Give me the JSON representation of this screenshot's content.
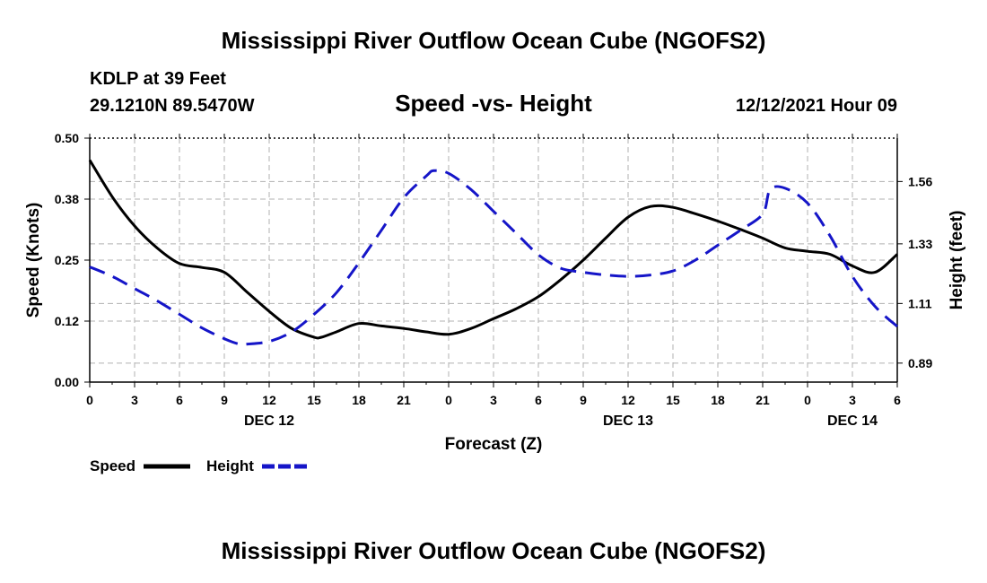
{
  "page": {
    "title": "Mississippi River Outflow Ocean Cube (NGOFS2)",
    "title_repeat": "Mississippi River Outflow Ocean Cube (NGOFS2)",
    "station": "KDLP at 39 Feet",
    "coordinates": "29.1210N  89.5470W",
    "datetime": "12/12/2021 Hour 09"
  },
  "chart_data": {
    "type": "line",
    "title": "Speed -vs- Height",
    "xlabel": "Forecast (Z)",
    "ylabel": "Speed (Knots)",
    "y2label": "Height (feet)",
    "ylim": [
      0,
      0.5
    ],
    "y2lim": [
      0.82,
      1.72
    ],
    "xlim": [
      0,
      54
    ],
    "x_ticks": [
      0,
      3,
      6,
      9,
      12,
      15,
      18,
      21,
      24,
      27,
      30,
      33,
      36,
      39,
      42,
      45,
      48,
      51,
      54
    ],
    "x_tick_labels": [
      "0",
      "3",
      "6",
      "9",
      "12",
      "15",
      "18",
      "21",
      "0",
      "3",
      "6",
      "9",
      "12",
      "15",
      "18",
      "21",
      "0",
      "3",
      "6"
    ],
    "y_ticks": [
      0.0,
      0.125,
      0.25,
      0.375,
      0.5
    ],
    "y_tick_labels": [
      "0.00",
      "0.12",
      "0.25",
      "0.38",
      "0.50"
    ],
    "y2_ticks": [
      0.89,
      1.11,
      1.33,
      1.56
    ],
    "y2_tick_labels": [
      "0.89",
      "1.11",
      "1.33",
      "1.56"
    ],
    "date_labels": [
      {
        "x": 12,
        "label": "DEC 12"
      },
      {
        "x": 36,
        "label": "DEC 13"
      },
      {
        "x": 51,
        "label": "DEC 14"
      }
    ],
    "grid": true,
    "series": [
      {
        "name": "Speed",
        "axis": "left",
        "color": "#000000",
        "style": "solid",
        "x": [
          0,
          1.5,
          3,
          4.5,
          6,
          7.5,
          9,
          10.5,
          12,
          13.5,
          15,
          15.5,
          16.5,
          18,
          19.5,
          21,
          22.5,
          24,
          25.5,
          27,
          28.5,
          30,
          31.5,
          33,
          34.5,
          36,
          37.5,
          39,
          40.5,
          42,
          43.5,
          45,
          46.5,
          48,
          49.5,
          51,
          52.5,
          54
        ],
        "values": [
          0.455,
          0.38,
          0.32,
          0.275,
          0.243,
          0.235,
          0.225,
          0.185,
          0.145,
          0.11,
          0.092,
          0.092,
          0.103,
          0.12,
          0.115,
          0.11,
          0.103,
          0.098,
          0.11,
          0.13,
          0.15,
          0.175,
          0.21,
          0.25,
          0.295,
          0.338,
          0.36,
          0.358,
          0.345,
          0.33,
          0.313,
          0.295,
          0.275,
          0.268,
          0.262,
          0.238,
          0.225,
          0.262
        ]
      },
      {
        "name": "Height",
        "axis": "right",
        "color": "#1515c8",
        "style": "dashed",
        "x": [
          0,
          1.5,
          3,
          4.5,
          6,
          7.5,
          9,
          10,
          10.5,
          12,
          13.5,
          15,
          16.5,
          18,
          19.5,
          21,
          22.5,
          23,
          24,
          25.5,
          27,
          28.5,
          30,
          31.5,
          33,
          34.5,
          36,
          37.5,
          39,
          40.5,
          42,
          43.5,
          45,
          45.5,
          46.5,
          48,
          49.5,
          51,
          52.5,
          54
        ],
        "values": [
          1.245,
          1.21,
          1.165,
          1.12,
          1.07,
          1.02,
          0.98,
          0.96,
          0.96,
          0.97,
          1.005,
          1.07,
          1.15,
          1.26,
          1.38,
          1.5,
          1.58,
          1.6,
          1.59,
          1.53,
          1.45,
          1.37,
          1.29,
          1.24,
          1.225,
          1.215,
          1.21,
          1.215,
          1.23,
          1.27,
          1.325,
          1.38,
          1.44,
          1.53,
          1.535,
          1.48,
          1.36,
          1.21,
          1.1,
          1.025
        ]
      }
    ],
    "legend": [
      {
        "label": "Speed",
        "color": "#000000",
        "style": "solid"
      },
      {
        "label": "Height",
        "color": "#1515c8",
        "style": "dashed"
      }
    ],
    "legend_position": "bottom-left"
  }
}
